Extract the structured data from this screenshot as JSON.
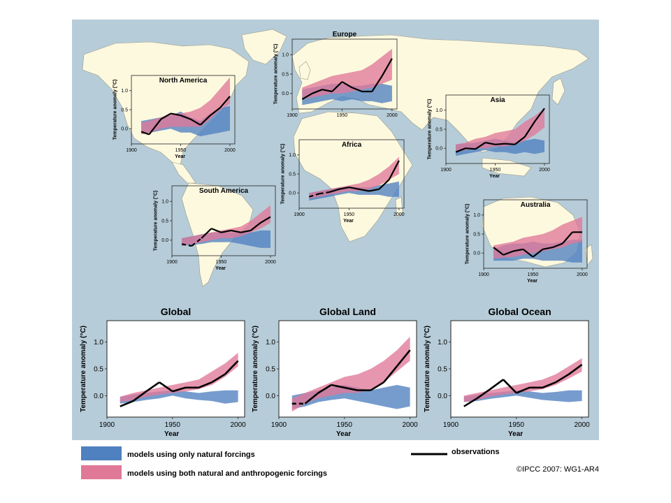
{
  "colors": {
    "ocean": "#b6ccd8",
    "land": "#fdf9df",
    "landStroke": "#9a9a8a",
    "natural": "#4f80c0",
    "anthro": "#e07898",
    "observations": "#000000"
  },
  "legend": {
    "natural": "models using only natural forcings",
    "anthro": "models using both natural and anthropogenic forcings",
    "observations": "observations"
  },
  "credit": "©IPCC  2007: WG1-AR4",
  "chart_data": [
    {
      "id": "north-america",
      "type": "area",
      "title": "North America",
      "xlabel": "Year",
      "ylabel": "Temperature anomaly (°C)",
      "xticks": [
        1900,
        1950,
        2000
      ],
      "yticks": [
        "0.0",
        "0.5",
        "1.0"
      ],
      "xlim": [
        1900,
        2005
      ],
      "ylim": [
        -0.4,
        1.4
      ],
      "x": [
        1910,
        1920,
        1930,
        1940,
        1950,
        1960,
        1970,
        1980,
        1990,
        2000
      ],
      "natural": {
        "lo": [
          -0.12,
          -0.1,
          -0.05,
          0.0,
          -0.1,
          -0.1,
          -0.2,
          -0.15,
          -0.1,
          -0.05
        ],
        "hi": [
          0.2,
          0.25,
          0.3,
          0.35,
          0.45,
          0.3,
          0.2,
          0.4,
          0.55,
          0.6
        ]
      },
      "anthro": {
        "lo": [
          -0.15,
          -0.1,
          0.0,
          0.05,
          0.05,
          0.05,
          0.05,
          0.25,
          0.5,
          0.65
        ],
        "hi": [
          0.15,
          0.22,
          0.3,
          0.4,
          0.4,
          0.45,
          0.55,
          0.75,
          1.05,
          1.35
        ]
      },
      "observations": [
        [
          1910,
          -0.08
        ],
        [
          1918,
          -0.15
        ],
        [
          1930,
          0.25
        ],
        [
          1940,
          0.4
        ],
        [
          1950,
          0.35
        ],
        [
          1960,
          0.25
        ],
        [
          1970,
          0.1
        ],
        [
          1980,
          0.35
        ],
        [
          1990,
          0.55
        ],
        [
          2000,
          0.85
        ]
      ]
    },
    {
      "id": "europe",
      "type": "area",
      "title": "Europe",
      "xlabel": "",
      "ylabel": "Temperature anomaly (°C)",
      "xticks": [
        1900,
        1950,
        2000
      ],
      "yticks": [
        "0.0",
        "0.5",
        "1.0"
      ],
      "xlim": [
        1900,
        2005
      ],
      "ylim": [
        -0.4,
        1.4
      ],
      "x": [
        1910,
        1920,
        1930,
        1940,
        1950,
        1960,
        1970,
        1980,
        1990,
        2000
      ],
      "natural": {
        "lo": [
          -0.3,
          -0.25,
          -0.2,
          -0.15,
          -0.2,
          -0.15,
          -0.2,
          -0.2,
          -0.25,
          -0.2
        ],
        "hi": [
          0.1,
          0.15,
          0.2,
          0.25,
          0.25,
          0.2,
          0.2,
          0.25,
          0.25,
          0.2
        ]
      },
      "anthro": {
        "lo": [
          -0.15,
          -0.1,
          -0.05,
          0.0,
          0.0,
          0.05,
          0.1,
          0.15,
          0.25,
          0.35
        ],
        "hi": [
          0.15,
          0.25,
          0.35,
          0.45,
          0.5,
          0.55,
          0.6,
          0.75,
          0.95,
          1.15
        ]
      },
      "observations": [
        [
          1910,
          -0.15
        ],
        [
          1920,
          0.0
        ],
        [
          1930,
          0.1
        ],
        [
          1940,
          0.05
        ],
        [
          1950,
          0.3
        ],
        [
          1960,
          0.15
        ],
        [
          1970,
          0.05
        ],
        [
          1980,
          0.05
        ],
        [
          1990,
          0.45
        ],
        [
          2000,
          0.9
        ]
      ]
    },
    {
      "id": "asia",
      "type": "area",
      "title": "Asia",
      "xlabel": "Year",
      "ylabel": "Temperature anomaly (°C)",
      "xticks": [
        1900,
        1950,
        2000
      ],
      "yticks": [
        "0.0",
        "0.5",
        "1.0"
      ],
      "xlim": [
        1900,
        2005
      ],
      "ylim": [
        -0.4,
        1.4
      ],
      "x": [
        1910,
        1920,
        1930,
        1940,
        1950,
        1960,
        1970,
        1980,
        1990,
        2000
      ],
      "natural": {
        "lo": [
          -0.2,
          -0.15,
          -0.1,
          -0.05,
          -0.1,
          -0.1,
          -0.15,
          -0.1,
          -0.15,
          -0.1
        ],
        "hi": [
          0.1,
          0.12,
          0.15,
          0.2,
          0.25,
          0.2,
          0.15,
          0.2,
          0.25,
          0.2
        ]
      },
      "anthro": {
        "lo": [
          -0.1,
          -0.05,
          0.0,
          0.0,
          0.05,
          0.05,
          0.1,
          0.2,
          0.35,
          0.55
        ],
        "hi": [
          0.1,
          0.15,
          0.25,
          0.3,
          0.4,
          0.45,
          0.5,
          0.7,
          0.85,
          1.05
        ]
      },
      "observations": [
        [
          1910,
          -0.1
        ],
        [
          1920,
          0.0
        ],
        [
          1930,
          -0.02
        ],
        [
          1940,
          0.15
        ],
        [
          1950,
          0.1
        ],
        [
          1960,
          0.12
        ],
        [
          1970,
          0.1
        ],
        [
          1980,
          0.3
        ],
        [
          1990,
          0.7
        ],
        [
          2000,
          1.05
        ]
      ]
    },
    {
      "id": "africa",
      "type": "area",
      "title": "Africa",
      "xlabel": "Year",
      "ylabel": "Temperature anomaly (°C)",
      "xticks": [
        1900,
        1950,
        2000
      ],
      "yticks": [
        "0.0",
        "0.5",
        "1.0"
      ],
      "xlim": [
        1900,
        2005
      ],
      "ylim": [
        -0.4,
        1.4
      ],
      "x": [
        1910,
        1920,
        1930,
        1940,
        1950,
        1960,
        1970,
        1980,
        1990,
        2000
      ],
      "natural": {
        "lo": [
          -0.2,
          -0.15,
          -0.1,
          -0.05,
          0.0,
          -0.05,
          -0.05,
          -0.05,
          -0.1,
          -0.1
        ],
        "hi": [
          0.0,
          0.05,
          0.1,
          0.15,
          0.15,
          0.15,
          0.15,
          0.2,
          0.25,
          0.3
        ]
      },
      "anthro": {
        "lo": [
          -0.15,
          -0.1,
          -0.05,
          0.0,
          0.05,
          0.05,
          0.1,
          0.2,
          0.35,
          0.5
        ],
        "hi": [
          0.0,
          0.05,
          0.1,
          0.15,
          0.2,
          0.25,
          0.35,
          0.5,
          0.7,
          0.95
        ]
      },
      "observations": [
        [
          1910,
          -0.1
        ],
        [
          1920,
          -0.02
        ],
        [
          1930,
          0.02
        ],
        [
          1940,
          0.1
        ],
        [
          1950,
          0.15
        ],
        [
          1960,
          0.1
        ],
        [
          1970,
          0.05
        ],
        [
          1980,
          0.1
        ],
        [
          1990,
          0.35
        ],
        [
          2000,
          0.85
        ]
      ],
      "observationsDashedUntil": 1930
    },
    {
      "id": "south-america",
      "type": "area",
      "title": "South America",
      "xlabel": "Year",
      "ylabel": "Temperature anomaly (°C)",
      "xticks": [
        1900,
        1950,
        2000
      ],
      "yticks": [
        "0.0",
        "0.5",
        "1.0"
      ],
      "xlim": [
        1900,
        2005
      ],
      "ylim": [
        -0.4,
        1.4
      ],
      "x": [
        1910,
        1920,
        1930,
        1940,
        1950,
        1960,
        1970,
        1980,
        1990,
        2000
      ],
      "natural": {
        "lo": [
          -0.15,
          -0.12,
          -0.1,
          -0.05,
          -0.05,
          -0.05,
          -0.1,
          -0.15,
          -0.2,
          -0.2
        ],
        "hi": [
          0.05,
          0.1,
          0.15,
          0.2,
          0.2,
          0.2,
          0.2,
          0.2,
          0.25,
          0.25
        ]
      },
      "anthro": {
        "lo": [
          -0.15,
          -0.1,
          -0.05,
          0.0,
          0.05,
          0.05,
          0.1,
          0.2,
          0.3,
          0.45
        ],
        "hi": [
          0.05,
          0.1,
          0.15,
          0.2,
          0.25,
          0.3,
          0.35,
          0.5,
          0.7,
          0.9
        ]
      },
      "observations": [
        [
          1910,
          -0.1
        ],
        [
          1920,
          -0.15
        ],
        [
          1930,
          0.05
        ],
        [
          1940,
          0.3
        ],
        [
          1950,
          0.2
        ],
        [
          1960,
          0.25
        ],
        [
          1970,
          0.2
        ],
        [
          1980,
          0.25
        ],
        [
          1990,
          0.45
        ],
        [
          2000,
          0.6
        ]
      ],
      "observationsDashedUntil": 1930
    },
    {
      "id": "australia",
      "type": "area",
      "title": "Australia",
      "xlabel": "Year",
      "ylabel": "Temperature anomaly (°C)",
      "xticks": [
        1900,
        1950,
        2000
      ],
      "yticks": [
        "0.0",
        "0.5",
        "1.0"
      ],
      "xlim": [
        1900,
        2005
      ],
      "ylim": [
        -0.4,
        1.4
      ],
      "x": [
        1910,
        1920,
        1930,
        1940,
        1950,
        1960,
        1970,
        1980,
        1990,
        2000
      ],
      "natural": {
        "lo": [
          -0.2,
          -0.2,
          -0.2,
          -0.15,
          -0.15,
          -0.2,
          -0.2,
          -0.2,
          -0.25,
          -0.25
        ],
        "hi": [
          0.1,
          0.2,
          0.25,
          0.25,
          0.3,
          0.25,
          0.25,
          0.3,
          0.35,
          0.35
        ]
      },
      "anthro": {
        "lo": [
          -0.15,
          -0.12,
          -0.1,
          -0.05,
          0.0,
          0.05,
          0.1,
          0.15,
          0.25,
          0.3
        ],
        "hi": [
          0.2,
          0.25,
          0.3,
          0.4,
          0.45,
          0.5,
          0.6,
          0.75,
          0.85,
          0.95
        ]
      },
      "observations": [
        [
          1910,
          0.15
        ],
        [
          1920,
          -0.05
        ],
        [
          1930,
          0.05
        ],
        [
          1940,
          0.1
        ],
        [
          1950,
          -0.1
        ],
        [
          1960,
          0.1
        ],
        [
          1970,
          0.15
        ],
        [
          1980,
          0.25
        ],
        [
          1990,
          0.55
        ],
        [
          2000,
          0.55
        ]
      ]
    },
    {
      "id": "global",
      "type": "area",
      "title": "Global",
      "xlabel": "Year",
      "ylabel": "Temperature anomaly (°C)",
      "xticks": [
        1900,
        1950,
        2000
      ],
      "yticks": [
        "0.0",
        "0.5",
        "1.0"
      ],
      "xlim": [
        1900,
        2005
      ],
      "ylim": [
        -0.4,
        1.4
      ],
      "x": [
        1910,
        1920,
        1930,
        1940,
        1950,
        1960,
        1970,
        1980,
        1990,
        2000
      ],
      "natural": {
        "lo": [
          -0.15,
          -0.12,
          -0.08,
          -0.05,
          0.0,
          -0.05,
          -0.08,
          -0.1,
          -0.15,
          -0.12
        ],
        "hi": [
          -0.02,
          0.02,
          0.05,
          0.08,
          0.1,
          0.08,
          0.05,
          0.08,
          0.1,
          0.1
        ]
      },
      "anthro": {
        "lo": [
          -0.12,
          -0.08,
          -0.02,
          0.02,
          0.05,
          0.08,
          0.12,
          0.2,
          0.35,
          0.55
        ],
        "hi": [
          -0.02,
          0.05,
          0.1,
          0.15,
          0.2,
          0.25,
          0.3,
          0.45,
          0.6,
          0.8
        ]
      },
      "observations": [
        [
          1910,
          -0.2
        ],
        [
          1920,
          -0.1
        ],
        [
          1930,
          0.08
        ],
        [
          1940,
          0.25
        ],
        [
          1950,
          0.08
        ],
        [
          1960,
          0.15
        ],
        [
          1970,
          0.15
        ],
        [
          1980,
          0.25
        ],
        [
          1990,
          0.4
        ],
        [
          2000,
          0.65
        ]
      ]
    },
    {
      "id": "global-land",
      "type": "area",
      "title": "Global Land",
      "xlabel": "Year",
      "ylabel": "Temperature anomaly (°C)",
      "xticks": [
        1900,
        1950,
        2000
      ],
      "yticks": [
        "0.0",
        "0.5",
        "1.0"
      ],
      "xlim": [
        1900,
        2005
      ],
      "ylim": [
        -0.4,
        1.4
      ],
      "x": [
        1910,
        1920,
        1930,
        1940,
        1950,
        1960,
        1970,
        1980,
        1990,
        2000
      ],
      "natural": {
        "lo": [
          -0.25,
          -0.2,
          -0.12,
          -0.08,
          -0.05,
          -0.1,
          -0.15,
          -0.2,
          -0.25,
          -0.2
        ],
        "hi": [
          0.0,
          0.05,
          0.1,
          0.15,
          0.2,
          0.15,
          0.1,
          0.15,
          0.2,
          0.15
        ]
      },
      "anthro": {
        "lo": [
          -0.3,
          -0.15,
          -0.05,
          0.0,
          0.05,
          0.05,
          0.12,
          0.25,
          0.45,
          0.65
        ],
        "hi": [
          -0.05,
          0.05,
          0.15,
          0.25,
          0.35,
          0.4,
          0.5,
          0.65,
          0.85,
          1.1
        ]
      },
      "observations": [
        [
          1910,
          -0.15
        ],
        [
          1920,
          -0.15
        ],
        [
          1930,
          0.05
        ],
        [
          1940,
          0.2
        ],
        [
          1950,
          0.15
        ],
        [
          1960,
          0.1
        ],
        [
          1970,
          0.1
        ],
        [
          1980,
          0.25
        ],
        [
          1990,
          0.55
        ],
        [
          2000,
          0.85
        ]
      ],
      "observationsDashedUntil": 1925
    },
    {
      "id": "global-ocean",
      "type": "area",
      "title": "Global Ocean",
      "xlabel": "Year",
      "ylabel": "Temperature anomaly (°C)",
      "xticks": [
        1900,
        1950,
        2000
      ],
      "yticks": [
        "0.0",
        "0.5",
        "1.0"
      ],
      "xlim": [
        1900,
        2005
      ],
      "ylim": [
        -0.4,
        1.4
      ],
      "x": [
        1910,
        1920,
        1930,
        1940,
        1950,
        1960,
        1970,
        1980,
        1990,
        2000
      ],
      "natural": {
        "lo": [
          -0.12,
          -0.1,
          -0.06,
          -0.03,
          0.0,
          -0.04,
          -0.08,
          -0.1,
          -0.12,
          -0.1
        ],
        "hi": [
          -0.02,
          0.02,
          0.05,
          0.07,
          0.1,
          0.08,
          0.05,
          0.07,
          0.1,
          0.1
        ]
      },
      "anthro": {
        "lo": [
          -0.12,
          -0.08,
          -0.02,
          0.02,
          0.05,
          0.08,
          0.12,
          0.2,
          0.32,
          0.45
        ],
        "hi": [
          0.0,
          0.05,
          0.1,
          0.15,
          0.2,
          0.25,
          0.3,
          0.4,
          0.55,
          0.7
        ]
      },
      "observations": [
        [
          1910,
          -0.2
        ],
        [
          1920,
          -0.05
        ],
        [
          1930,
          0.12
        ],
        [
          1940,
          0.3
        ],
        [
          1950,
          0.05
        ],
        [
          1960,
          0.15
        ],
        [
          1970,
          0.15
        ],
        [
          1980,
          0.25
        ],
        [
          1990,
          0.4
        ],
        [
          2000,
          0.58
        ]
      ]
    }
  ]
}
